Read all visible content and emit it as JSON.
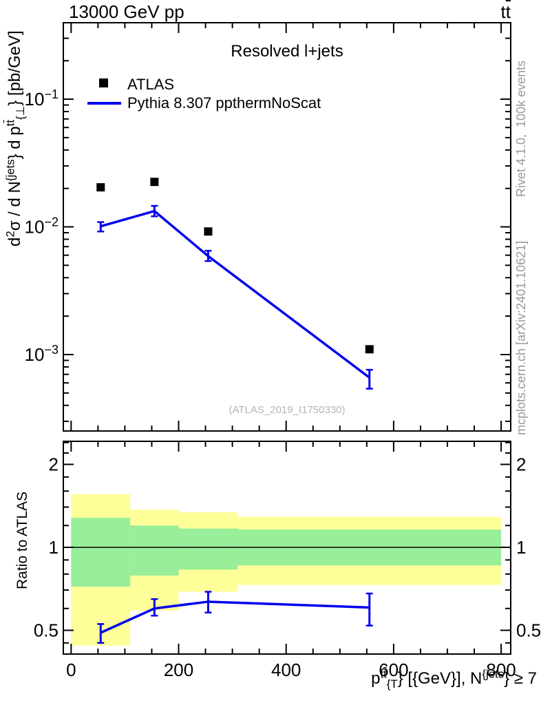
{
  "header": {
    "left_title": "13000 GeV pp",
    "right_title_rich": [
      {
        "t": "t"
      },
      {
        "t": "t",
        "ol": true
      }
    ]
  },
  "panel_title": "Resolved l+jets",
  "watermark": "(ATLAS_2019_I1750330)",
  "side_texts": {
    "top": "Rivet 4.1.0,  100k events",
    "bottom": "mcplots.cern.ch [arXiv:2401.10621]"
  },
  "legend": {
    "items": [
      {
        "label": "ATLAS",
        "marker": "filled-square",
        "color": "#000000"
      },
      {
        "label": "Pythia 8.307 ppthermNoScat",
        "marker": "line",
        "color": "#0000ee"
      }
    ]
  },
  "axis_labels": {
    "y_main_rich": [
      {
        "t": "d"
      },
      {
        "t": "2",
        "v": "sup"
      },
      {
        "t": "σ / d N"
      },
      {
        "t": "{jets",
        "v": "sup"
      },
      {
        "t": "} d p"
      },
      {
        "t": "t",
        "v": "sup"
      },
      {
        "t": "t",
        "v": "sup",
        "ol": true
      },
      {
        "t": "{⊥",
        "v": "sub"
      },
      {
        "t": "} [pb/GeV]"
      }
    ],
    "y_ratio": "Ratio to ATLAS",
    "x_rich": [
      {
        "t": "p"
      },
      {
        "t": "t",
        "v": "sup"
      },
      {
        "t": "t",
        "v": "sup",
        "ol": true
      },
      {
        "t": "{T",
        "v": "sub"
      },
      {
        "t": "} [{GeV}], N"
      },
      {
        "t": "{jets",
        "v": "sup"
      },
      {
        "t": "} ≥ 7"
      }
    ]
  },
  "colors": {
    "mc_line": "#0000ee",
    "data_marker": "#000000",
    "band_outer": "#ffff99",
    "band_inner": "#99ee99",
    "reference_line": "#000000"
  },
  "chart_data": [
    {
      "type": "line",
      "panel": "main",
      "title": "Resolved l+jets",
      "xlabel": "pT(ttbar) [GeV], Njets >= 7",
      "ylabel": "d2sigma / dNjets dpT(ttbar) [pb/GeV]",
      "xlim": [
        -14.5,
        817.8
      ],
      "ylim": [
        0.000252,
        0.397
      ],
      "yscale": "log",
      "grid": false,
      "xticks": [
        0,
        200,
        400,
        600,
        800
      ],
      "x_minor_step": 50,
      "ytick_exponents": [
        -1,
        -2,
        -3
      ],
      "series": [
        {
          "name": "ATLAS",
          "type": "scatter",
          "marker": "filled-square",
          "color": "#000000",
          "x": [
            55,
            155,
            255,
            555
          ],
          "y": [
            0.0204,
            0.0225,
            0.0092,
            0.0011
          ]
        },
        {
          "name": "Pythia 8.307 ppthermNoScat",
          "type": "line",
          "color": "#0000ee",
          "x": [
            55,
            155,
            255,
            555
          ],
          "y": [
            0.0101,
            0.0133,
            0.0059,
            0.00066
          ],
          "yerr_lo": [
            0.0009,
            0.0012,
            0.0005,
            0.00012
          ],
          "yerr_hi": [
            0.0008,
            0.0013,
            0.0006,
            0.0001
          ]
        }
      ]
    },
    {
      "type": "ratio",
      "panel": "ratio",
      "ylabel": "Ratio to ATLAS",
      "ylim": [
        0.41,
        2.425
      ],
      "yscale": "log",
      "yticks": [
        2,
        1,
        0.5
      ],
      "yticks_minor": [
        2.4,
        2.2,
        1.8,
        1.6,
        1.4,
        1.2,
        0.9,
        0.8,
        0.7,
        0.6,
        0.45
      ],
      "reference_line": 1,
      "bands": [
        {
          "x0": 0,
          "x1": 110,
          "outer": [
            0.44,
            1.56
          ],
          "inner": [
            0.72,
            1.28
          ]
        },
        {
          "x0": 110,
          "x1": 200,
          "outer": [
            0.59,
            1.37
          ],
          "inner": [
            0.79,
            1.2
          ]
        },
        {
          "x0": 200,
          "x1": 310,
          "outer": [
            0.69,
            1.34
          ],
          "inner": [
            0.83,
            1.17
          ]
        },
        {
          "x0": 310,
          "x1": 800,
          "outer": [
            0.73,
            1.29
          ],
          "inner": [
            0.86,
            1.16
          ]
        }
      ],
      "series": [
        {
          "name": "Pythia 8.307 ppthermNoScat / ATLAS",
          "type": "line",
          "color": "#0000ee",
          "x": [
            55,
            155,
            255,
            555
          ],
          "y": [
            0.49,
            0.6,
            0.635,
            0.605
          ],
          "yerr_lo": [
            0.04,
            0.035,
            0.055,
            0.085
          ],
          "yerr_hi": [
            0.037,
            0.049,
            0.055,
            0.075
          ]
        }
      ]
    }
  ]
}
